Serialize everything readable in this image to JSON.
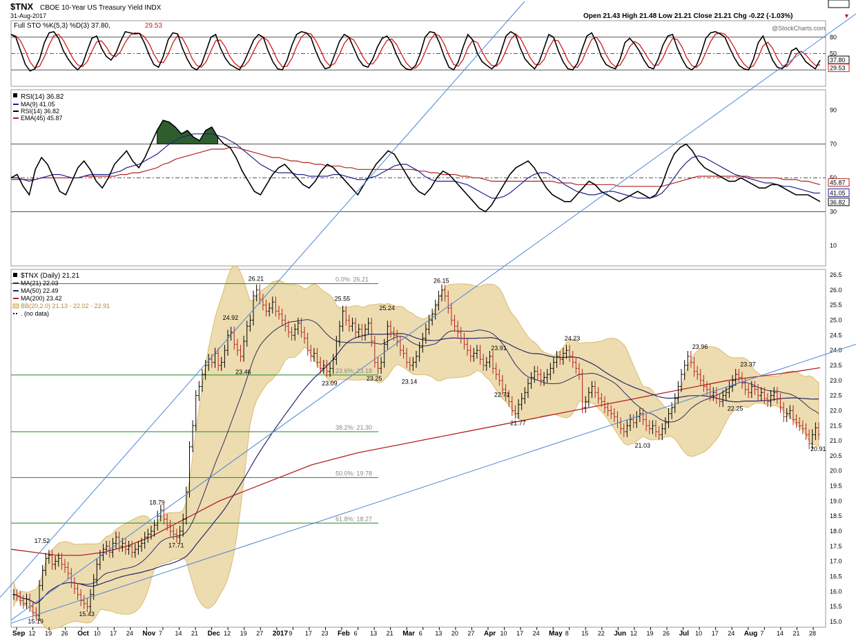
{
  "header": {
    "symbol": "$TNX",
    "description": "CBOE 10-Year US Treasury Yield INDX",
    "date": "31-Aug-2017",
    "quote": "Open 21.43  High 21.48  Low 21.21  Close 21.21  Chg -0.22 (-1.03%)",
    "change_arrow": "▼",
    "brand": "@StockCharts.com"
  },
  "colors": {
    "price_up": "#000000",
    "price_down": "#b22222",
    "bb_fill": "#ecd9a8",
    "bb_line": "#d8b35e",
    "ma21": "#2b2b5e",
    "ma50": "#27276b",
    "ma200": "#b22222",
    "trendline": "#4a86d4",
    "fib_line": "#1a8c1a",
    "sto_k": "#000000",
    "sto_d": "#d11a1a",
    "rsi": "#000000",
    "rsi_ma": "#20208a",
    "rsi_ema": "#b22222",
    "overbought_fill": "#2e5e2e"
  },
  "chart_data": [
    {
      "type": "line",
      "panel": "stochastics",
      "legend": "Full STO %K(5,3) %D(3) 37.80, 29.53",
      "legend_k": "Full STO %K(5,3) %D(3) 37.80,",
      "legend_d": "29.53",
      "ylim": [
        0,
        100
      ],
      "y_ticks": [
        "80",
        "50",
        "20"
      ],
      "last_values": {
        "k": "37.80",
        "d": "29.53"
      },
      "k_values": [
        85,
        80,
        55,
        30,
        18,
        22,
        40,
        70,
        88,
        90,
        78,
        55,
        40,
        28,
        20,
        30,
        55,
        78,
        82,
        60,
        45,
        38,
        50,
        72,
        90,
        88,
        86,
        87,
        70,
        48,
        30,
        25,
        45,
        75,
        88,
        86,
        60,
        40,
        25,
        20,
        30,
        55,
        80,
        85,
        60,
        42,
        30,
        25,
        20,
        35,
        55,
        75,
        85,
        80,
        55,
        35,
        22,
        20,
        38,
        65,
        85,
        90,
        88,
        80,
        55,
        35,
        22,
        25,
        48,
        72,
        85,
        80,
        60,
        40,
        28,
        25,
        40,
        62,
        78,
        82,
        70,
        48,
        30,
        22,
        20,
        28,
        50,
        80,
        90,
        88,
        70,
        45,
        25,
        20,
        35,
        62,
        85,
        75,
        50,
        35,
        28,
        22,
        30,
        55,
        82,
        90,
        85,
        60,
        40,
        30,
        22,
        35,
        60,
        85,
        80,
        55,
        35,
        22,
        20,
        32,
        58,
        82,
        88,
        70,
        45,
        30,
        25,
        22,
        40,
        70,
        78,
        68,
        55,
        38,
        25,
        22,
        40,
        66,
        82,
        85,
        60,
        40,
        25,
        20,
        28,
        50,
        78,
        88,
        90,
        86,
        80,
        60,
        42,
        28,
        22,
        20,
        40,
        70,
        82,
        60,
        38,
        25,
        22,
        30,
        55,
        60,
        48,
        35,
        28,
        22,
        38
      ]
    },
    {
      "type": "line",
      "panel": "rsi",
      "legend": [
        "RSI(14) 36.82",
        "MA(9) 41.05",
        "RSI(14) 36.82",
        "EMA(45) 45.87"
      ],
      "ylim": [
        0,
        100
      ],
      "y_ticks": [
        "90",
        "70",
        "50",
        "30",
        "10"
      ],
      "last_values": {
        "ema45": "45.87",
        "ma9": "41.05",
        "rsi": "36.82"
      },
      "rsi_values": [
        50,
        52,
        45,
        40,
        55,
        62,
        58,
        50,
        42,
        40,
        48,
        56,
        60,
        55,
        48,
        44,
        50,
        58,
        62,
        66,
        60,
        56,
        62,
        70,
        78,
        84,
        83,
        80,
        76,
        78,
        74,
        72,
        78,
        80,
        74,
        70,
        68,
        62,
        54,
        48,
        42,
        40,
        46,
        52,
        56,
        58,
        54,
        50,
        46,
        44,
        48,
        54,
        58,
        56,
        52,
        48,
        44,
        40,
        46,
        52,
        58,
        62,
        66,
        64,
        58,
        52,
        46,
        42,
        40,
        44,
        50,
        54,
        52,
        48,
        44,
        40,
        36,
        32,
        30,
        34,
        40,
        46,
        52,
        56,
        58,
        60,
        56,
        50,
        44,
        40,
        38,
        36,
        36,
        40,
        44,
        48,
        46,
        42,
        40,
        38,
        36,
        38,
        40,
        42,
        40,
        38,
        40,
        46,
        56,
        64,
        68,
        70,
        66,
        60,
        56,
        54,
        52,
        50,
        48,
        48,
        50,
        48,
        46,
        44,
        44,
        46,
        46,
        44,
        42,
        40,
        40,
        40,
        38,
        36
      ],
      "ma9_values": [
        50,
        50,
        49,
        48,
        49,
        50,
        51,
        52,
        52,
        51,
        50,
        50,
        51,
        52,
        52,
        52,
        52,
        53,
        54,
        56,
        57,
        58,
        60,
        62,
        64,
        67,
        70,
        72,
        74,
        75,
        76,
        76,
        76,
        76,
        75,
        74,
        72,
        70,
        67,
        64,
        61,
        58,
        56,
        54,
        53,
        53,
        53,
        52,
        52,
        51,
        51,
        51,
        51,
        52,
        52,
        51,
        50,
        49,
        49,
        50,
        51,
        53,
        55,
        57,
        58,
        58,
        56,
        54,
        51,
        49,
        48,
        48,
        48,
        48,
        47,
        46,
        44,
        42,
        40,
        38,
        38,
        39,
        41,
        44,
        47,
        50,
        52,
        53,
        53,
        51,
        49,
        46,
        44,
        42,
        41,
        40,
        40,
        41,
        42,
        42,
        41,
        40,
        39,
        38,
        38,
        38,
        39,
        41,
        45,
        50,
        55,
        59,
        62,
        63,
        62,
        60,
        58,
        56,
        54,
        52,
        51,
        50,
        49,
        48,
        47,
        47,
        46,
        45,
        45,
        44,
        43,
        42,
        41,
        41
      ],
      "ema45_values": [
        49,
        49,
        49,
        49,
        49,
        50,
        50,
        50,
        50,
        50,
        50,
        50,
        51,
        51,
        51,
        51,
        51,
        51,
        52,
        52,
        53,
        53,
        54,
        55,
        56,
        58,
        59,
        61,
        62,
        63,
        64,
        65,
        66,
        67,
        67,
        67,
        68,
        68,
        67,
        66,
        65,
        64,
        63,
        62,
        62,
        61,
        60,
        60,
        59,
        59,
        58,
        58,
        57,
        57,
        57,
        56,
        56,
        55,
        55,
        55,
        55,
        55,
        55,
        55,
        55,
        55,
        55,
        54,
        54,
        53,
        53,
        52,
        52,
        52,
        51,
        51,
        50,
        50,
        49,
        48,
        48,
        48,
        48,
        48,
        48,
        48,
        48,
        48,
        48,
        48,
        47,
        47,
        47,
        46,
        46,
        46,
        46,
        46,
        46,
        46,
        45,
        45,
        45,
        45,
        45,
        45,
        45,
        45,
        46,
        47,
        48,
        49,
        50,
        51,
        51,
        51,
        51,
        51,
        51,
        51,
        51,
        51,
        50,
        50,
        50,
        50,
        50,
        49,
        49,
        49,
        48,
        48,
        47,
        46
      ],
      "overbought_level": 70
    },
    {
      "type": "ohlc",
      "panel": "price",
      "legend": [
        "$TNX (Daily) 21.21",
        "MA(21) 22.03",
        "MA(50) 22.49",
        "MA(200) 23.42",
        "BB(20,2.0) 21.13 - 22.02 - 22.91",
        ". (no data)"
      ],
      "ylim": [
        15.0,
        26.5
      ],
      "y_ticks": [
        "26.5",
        "26.0",
        "25.5",
        "25.0",
        "24.5",
        "24.0",
        "23.5",
        "23.0",
        "22.5",
        "22.0",
        "21.5",
        "21.0",
        "20.5",
        "20.0",
        "19.5",
        "19.0",
        "18.5",
        "18.0",
        "17.5",
        "17.0",
        "16.5",
        "16.0",
        "15.5",
        "15.0"
      ],
      "right_labels": [
        {
          "text": "23.42",
          "y": 23.42,
          "color": "#b22222"
        },
        {
          "text": "22.91",
          "y": 22.91,
          "color": "#b08a3e"
        },
        {
          "text": "22.49",
          "y": 22.49,
          "color": "#27276b"
        },
        {
          "text": "22.03",
          "y": 22.03,
          "color": "#2b2b5e"
        },
        {
          "text": "21.21",
          "y": 21.21,
          "color": "#000000"
        }
      ],
      "x_labels": [
        "Sep",
        "12",
        "19",
        "26",
        "Oct",
        "10",
        "17",
        "24",
        "Nov",
        "7",
        "14",
        "21",
        "Dec",
        "12",
        "19",
        "27",
        "2017",
        "9",
        "17",
        "23",
        "Feb",
        "6",
        "13",
        "21",
        "Mar",
        "6",
        "13",
        "20",
        "27",
        "Apr",
        "10",
        "17",
        "24",
        "May",
        "8",
        "15",
        "22",
        "Jun",
        "12",
        "19",
        "26",
        "Jul",
        "10",
        "17",
        "24",
        "Aug",
        "7",
        "14",
        "21",
        "28"
      ],
      "fib_levels": [
        {
          "label": "0.0%: 26.21",
          "value": 26.21
        },
        {
          "label": "23.6%: 23.18",
          "value": 23.18
        },
        {
          "label": "38.2%: 21.30",
          "value": 21.3
        },
        {
          "label": "50.0%: 19.78",
          "value": 19.78
        },
        {
          "label": "61.8%: 18.27",
          "value": 18.27
        }
      ],
      "annotations": [
        {
          "text": "15.19",
          "index": 7,
          "value": 15.19,
          "pos": "below"
        },
        {
          "text": "17.52",
          "index": 9,
          "value": 17.52,
          "pos": "above"
        },
        {
          "text": "15.43",
          "index": 23,
          "value": 15.43,
          "pos": "below"
        },
        {
          "text": "18.79",
          "index": 45,
          "value": 18.79,
          "pos": "above"
        },
        {
          "text": "17.71",
          "index": 51,
          "value": 17.71,
          "pos": "below"
        },
        {
          "text": "24.92",
          "index": 68,
          "value": 24.92,
          "pos": "above"
        },
        {
          "text": "23.46",
          "index": 72,
          "value": 23.46,
          "pos": "below"
        },
        {
          "text": "26.21",
          "index": 76,
          "value": 26.21,
          "pos": "above"
        },
        {
          "text": "23.09",
          "index": 99,
          "value": 23.09,
          "pos": "below"
        },
        {
          "text": "25.55",
          "index": 103,
          "value": 25.55,
          "pos": "above"
        },
        {
          "text": "23.25",
          "index": 113,
          "value": 23.25,
          "pos": "below"
        },
        {
          "text": "25.24",
          "index": 117,
          "value": 25.24,
          "pos": "above"
        },
        {
          "text": "23.14",
          "index": 124,
          "value": 23.14,
          "pos": "below"
        },
        {
          "text": "26.15",
          "index": 134,
          "value": 26.15,
          "pos": "above"
        },
        {
          "text": "23.91",
          "index": 152,
          "value": 23.91,
          "pos": "above"
        },
        {
          "text": "22.71",
          "index": 153,
          "value": 22.71,
          "pos": "below"
        },
        {
          "text": "21.77",
          "index": 158,
          "value": 21.77,
          "pos": "below"
        },
        {
          "text": "24.23",
          "index": 175,
          "value": 24.23,
          "pos": "above"
        },
        {
          "text": "21.03",
          "index": 197,
          "value": 21.03,
          "pos": "below"
        },
        {
          "text": "23.96",
          "index": 215,
          "value": 23.96,
          "pos": "above"
        },
        {
          "text": "23.37",
          "index": 230,
          "value": 23.37,
          "pos": "above"
        },
        {
          "text": "22.25",
          "index": 226,
          "value": 22.25,
          "pos": "below"
        },
        {
          "text": "20.91",
          "index": 252,
          "value": 20.91,
          "pos": "below"
        }
      ],
      "close": [
        15.9,
        15.85,
        15.7,
        15.6,
        15.75,
        15.5,
        15.3,
        15.2,
        16.2,
        16.7,
        17.1,
        17.2,
        16.9,
        17.0,
        17.1,
        16.9,
        16.8,
        16.6,
        16.3,
        16.1,
        15.9,
        15.7,
        15.6,
        15.5,
        15.9,
        16.4,
        16.9,
        17.2,
        17.4,
        17.5,
        17.3,
        17.6,
        17.8,
        17.5,
        17.6,
        17.4,
        17.5,
        17.3,
        17.4,
        17.5,
        17.6,
        17.8,
        17.9,
        18.0,
        18.2,
        18.5,
        18.7,
        18.4,
        18.2,
        18.0,
        17.9,
        17.8,
        18.0,
        18.4,
        19.3,
        20.8,
        21.5,
        22.5,
        22.8,
        23.2,
        23.5,
        23.7,
        23.6,
        23.9,
        23.5,
        23.6,
        24.0,
        24.5,
        24.6,
        24.2,
        24.0,
        23.8,
        24.3,
        24.8,
        25.0,
        25.8,
        26.0,
        25.7,
        25.5,
        25.3,
        25.4,
        25.6,
        25.3,
        25.2,
        25.0,
        24.8,
        24.6,
        24.5,
        24.7,
        24.9,
        24.6,
        24.4,
        24.0,
        23.8,
        23.9,
        23.6,
        23.4,
        23.5,
        23.3,
        23.4,
        23.7,
        24.3,
        24.8,
        25.3,
        25.0,
        24.8,
        24.9,
        24.6,
        24.7,
        24.5,
        24.7,
        24.9,
        24.3,
        23.6,
        23.4,
        23.6,
        24.2,
        24.8,
        24.6,
        24.5,
        24.3,
        24.0,
        23.9,
        23.6,
        23.5,
        23.6,
        23.8,
        24.1,
        24.4,
        24.7,
        25.0,
        25.2,
        25.5,
        25.8,
        26.0,
        25.8,
        25.4,
        25.0,
        24.8,
        24.6,
        24.4,
        24.2,
        24.0,
        23.8,
        23.9,
        24.0,
        23.7,
        23.5,
        23.6,
        23.8,
        23.4,
        23.2,
        23.0,
        22.7,
        22.5,
        22.3,
        22.0,
        21.9,
        22.2,
        22.4,
        22.6,
        22.9,
        23.1,
        23.3,
        23.2,
        23.0,
        23.1,
        23.2,
        23.4,
        23.6,
        23.8,
        23.7,
        23.9,
        24.0,
        23.8,
        23.6,
        23.4,
        23.2,
        22.1,
        22.3,
        22.6,
        22.8,
        22.6,
        22.4,
        22.3,
        22.1,
        22.0,
        21.9,
        21.8,
        21.6,
        21.4,
        21.3,
        21.5,
        21.7,
        21.6,
        21.8,
        21.9,
        21.7,
        21.5,
        21.4,
        21.5,
        21.3,
        21.2,
        21.4,
        21.6,
        21.9,
        22.1,
        22.4,
        22.8,
        23.2,
        23.5,
        23.8,
        23.6,
        23.3,
        23.2,
        23.0,
        22.8,
        22.7,
        22.5,
        22.6,
        22.4,
        22.3,
        22.5,
        22.6,
        22.8,
        23.0,
        23.2,
        23.1,
        22.9,
        22.7,
        22.6,
        22.8,
        22.7,
        22.5,
        22.6,
        22.4,
        22.3,
        22.5,
        22.6,
        22.4,
        22.1,
        21.8,
        21.9,
        22.0,
        21.7,
        21.6,
        21.5,
        21.4,
        21.2,
        20.9,
        21.2,
        21.43,
        21.21
      ],
      "ma200_values": [
        17.4,
        17.3,
        17.2,
        17.2,
        17.3,
        17.5,
        17.8,
        18.2,
        18.6,
        19.0,
        19.3,
        19.6,
        19.9,
        20.2,
        20.4,
        20.6,
        20.75,
        20.9,
        21.05,
        21.2,
        21.35,
        21.5,
        21.65,
        21.8,
        21.95,
        22.1,
        22.25,
        22.4,
        22.55,
        22.7,
        22.85,
        23.0,
        23.1,
        23.2,
        23.3,
        23.42
      ]
    }
  ]
}
